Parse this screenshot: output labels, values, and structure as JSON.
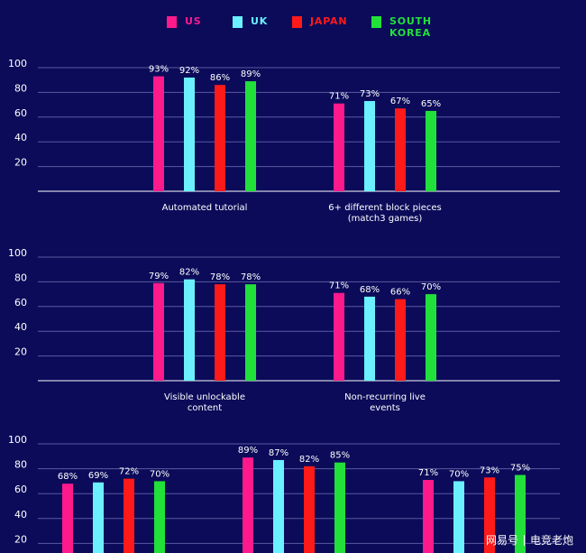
{
  "legend": [
    {
      "label": "US",
      "color": "#ff1a8c"
    },
    {
      "label": "UK",
      "color": "#6af0ff"
    },
    {
      "label": "JAPAN",
      "color": "#ff1a1a"
    },
    {
      "label": "SOUTH\nKOREA",
      "color": "#22e03a"
    }
  ],
  "watermark": {
    "brand": "网易号",
    "author": "电竞老炮"
  },
  "chart_data": [
    {
      "type": "bar",
      "categories": [
        "Automated tutorial",
        "6+ different block pieces (match3 games)"
      ],
      "category_labels": [
        [
          "Automated tutorial"
        ],
        [
          "6+ different block pieces",
          "(match3 games)"
        ]
      ],
      "series": [
        {
          "name": "US",
          "values": [
            93,
            71
          ]
        },
        {
          "name": "UK",
          "values": [
            92,
            73
          ]
        },
        {
          "name": "JAPAN",
          "values": [
            86,
            67
          ]
        },
        {
          "name": "SOUTH KOREA",
          "values": [
            89,
            65
          ]
        }
      ],
      "data_labels": [
        [
          "93%",
          "92%",
          "86%",
          "89%"
        ],
        [
          "71%",
          "73%",
          "67%",
          "65%"
        ]
      ],
      "ylim": [
        0,
        100
      ],
      "yticks": [
        "100",
        "80",
        "60",
        "40",
        "20"
      ],
      "grid": true
    },
    {
      "type": "bar",
      "categories": [
        "Visible unlockable content",
        "Non-recurring live events"
      ],
      "category_labels": [
        [
          "Visible unlockable",
          "content"
        ],
        [
          "Non-recurring live",
          "events"
        ]
      ],
      "series": [
        {
          "name": "US",
          "values": [
            79,
            71
          ]
        },
        {
          "name": "UK",
          "values": [
            82,
            68
          ]
        },
        {
          "name": "JAPAN",
          "values": [
            78,
            66
          ]
        },
        {
          "name": "SOUTH KOREA",
          "values": [
            78,
            70
          ]
        }
      ],
      "data_labels": [
        [
          "79%",
          "82%",
          "78%",
          "78%"
        ],
        [
          "71%",
          "68%",
          "66%",
          "70%"
        ]
      ],
      "ylim": [
        0,
        100
      ],
      "yticks": [
        "100",
        "80",
        "60",
        "40",
        "20"
      ],
      "grid": true
    },
    {
      "type": "bar",
      "categories": [
        "",
        "",
        ""
      ],
      "category_labels": [
        [],
        [],
        []
      ],
      "series": [
        {
          "name": "US",
          "values": [
            68,
            89,
            71
          ]
        },
        {
          "name": "UK",
          "values": [
            69,
            87,
            70
          ]
        },
        {
          "name": "JAPAN",
          "values": [
            72,
            82,
            73
          ]
        },
        {
          "name": "SOUTH KOREA",
          "values": [
            70,
            85,
            75
          ]
        }
      ],
      "data_labels": [
        [
          "68%",
          "69%",
          "72%",
          "70%"
        ],
        [
          "89%",
          "87%",
          "82%",
          "85%"
        ],
        [
          "71%",
          "70%",
          "73%",
          "75%"
        ]
      ],
      "ylim": [
        0,
        100
      ],
      "yticks": [
        "100",
        "80",
        "60",
        "40",
        "20"
      ],
      "grid": true
    }
  ]
}
